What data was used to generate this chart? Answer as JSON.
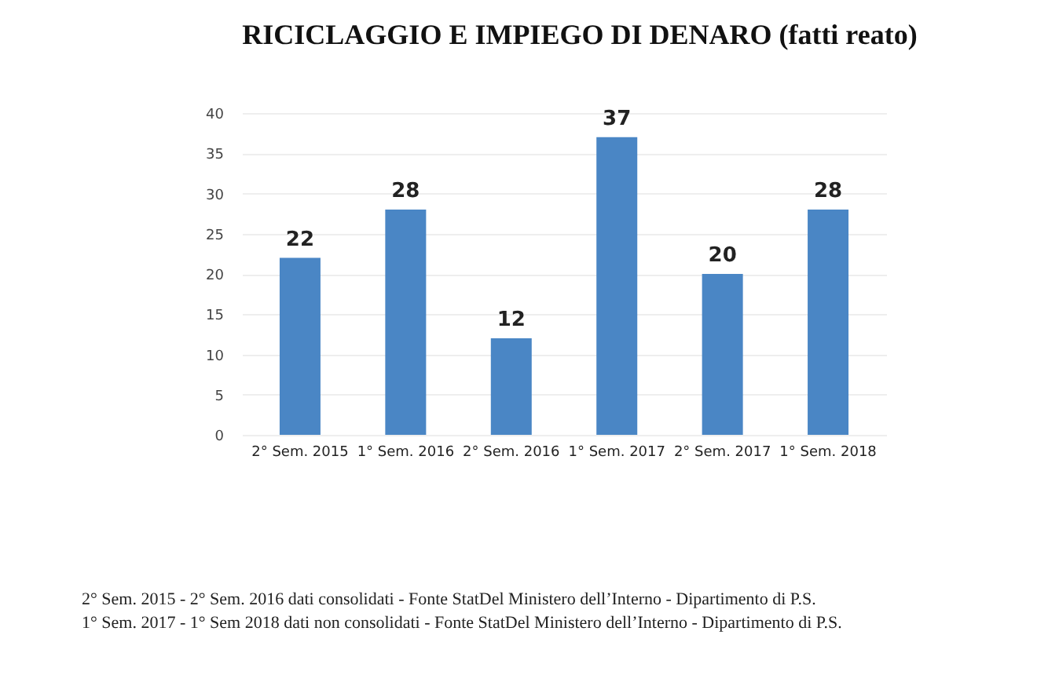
{
  "chart_data": {
    "type": "bar",
    "title": "RICICLAGGIO E IMPIEGO DI DENARO  (fatti reato)",
    "categories": [
      "2° Sem. 2015",
      "1° Sem. 2016",
      "2° Sem. 2016",
      "1° Sem. 2017",
      "2° Sem. 2017",
      "1° Sem. 2018"
    ],
    "values": [
      22,
      28,
      12,
      37,
      20,
      28
    ],
    "color": "#4a86c5",
    "data_labels": true,
    "ylim": [
      0,
      40
    ],
    "yticks": [
      0,
      5,
      10,
      15,
      20,
      25,
      30,
      35,
      40
    ],
    "grid": "y",
    "annotations": [
      "2° Sem. 2015 - 2° Sem. 2016 dati consolidati - Fonte StatDel Ministero dell’Interno - Dipartimento di P.S.",
      "1° Sem. 2017 - 1° Sem 2018 dati non consolidati - Fonte StatDel Ministero dell’Interno - Dipartimento di P.S."
    ]
  }
}
